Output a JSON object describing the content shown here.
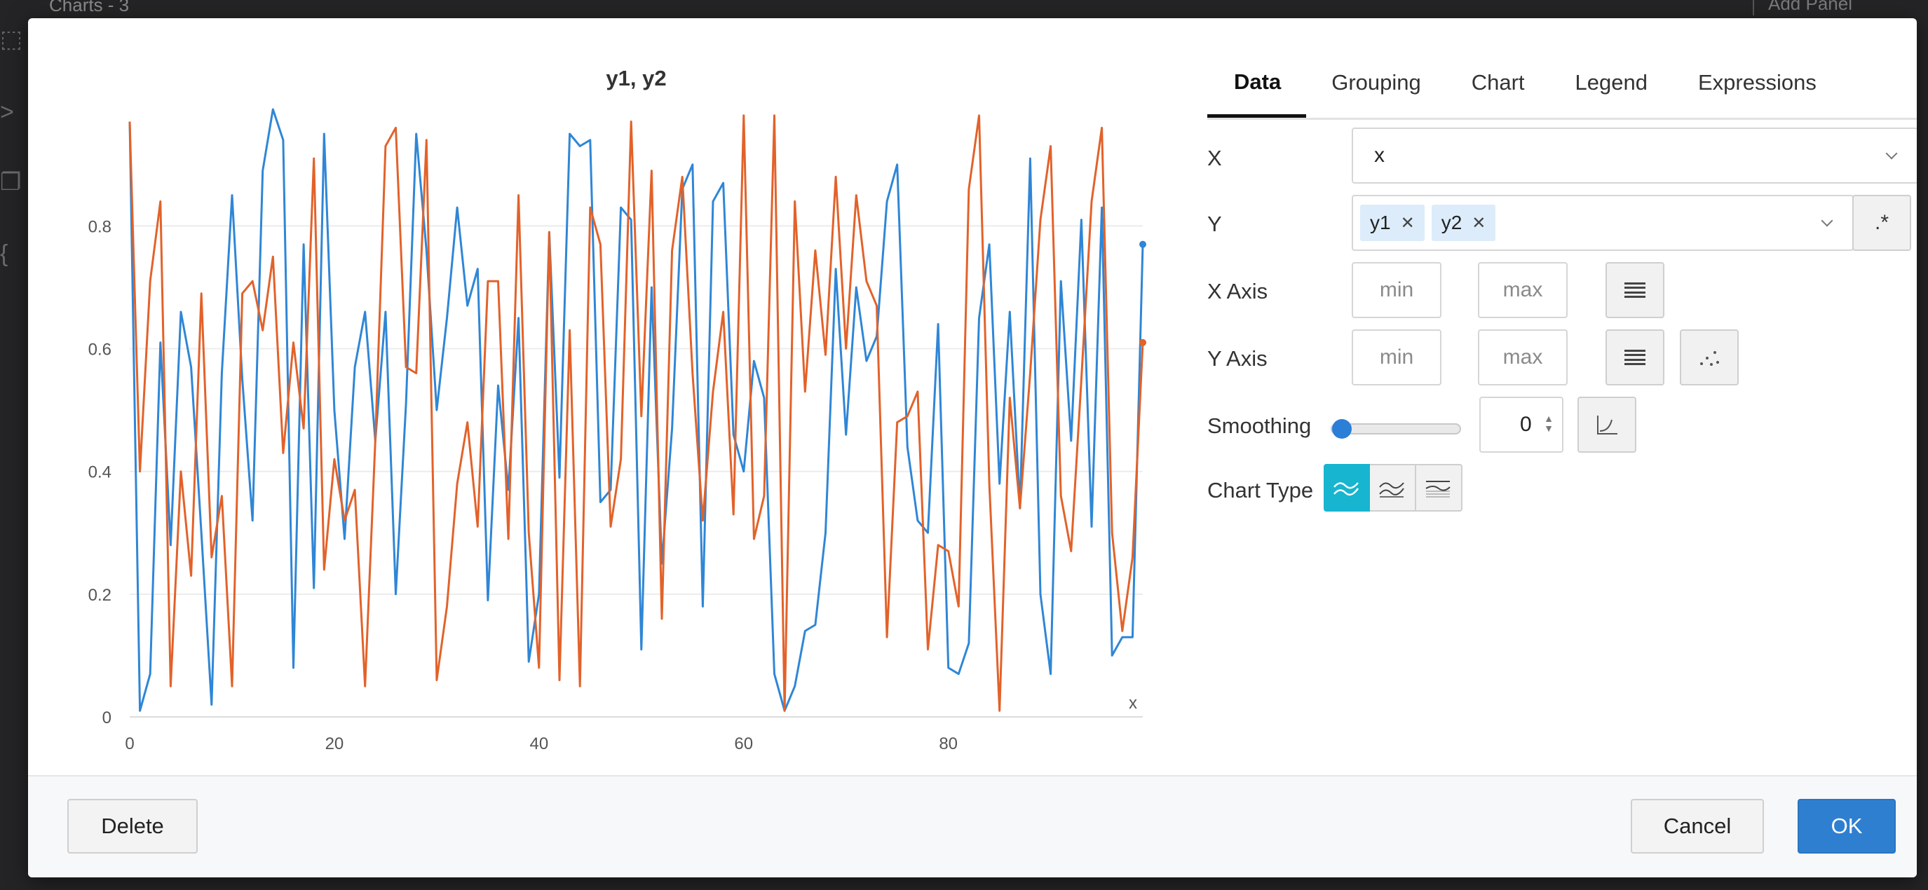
{
  "background": {
    "tab_label": "Charts - 3",
    "right_label": "Add Panel"
  },
  "colors": {
    "series_y1": "#2f86d6",
    "series_y2": "#e2622a",
    "primary": "#2f7fd1",
    "active_toggle": "#17b5cf"
  },
  "tabs": [
    {
      "label": "Data",
      "active": true
    },
    {
      "label": "Grouping",
      "active": false
    },
    {
      "label": "Chart",
      "active": false
    },
    {
      "label": "Legend",
      "active": false
    },
    {
      "label": "Expressions",
      "active": false
    }
  ],
  "form": {
    "x_label": "X",
    "x_value": "x",
    "y_label": "Y",
    "y_tags": [
      "y1",
      "y2"
    ],
    "regex_label": ".*",
    "x_axis_label": "X Axis",
    "y_axis_label": "Y Axis",
    "min_placeholder": "min",
    "max_placeholder": "max",
    "smoothing_label": "Smoothing",
    "smoothing_value": "0",
    "smoothing_level": 0,
    "chart_type_label": "Chart Type"
  },
  "footer": {
    "delete_label": "Delete",
    "cancel_label": "Cancel",
    "ok_label": "OK"
  },
  "chart_data": {
    "type": "line",
    "title": "y1, y2",
    "xlabel": "x",
    "ylabel": "",
    "xlim": [
      0,
      99
    ],
    "ylim": [
      0,
      0.99
    ],
    "x_ticks": [
      0,
      20,
      40,
      60,
      80
    ],
    "y_ticks": [
      0,
      0.2,
      0.4,
      0.6,
      0.8
    ],
    "y_tick_labels": [
      "0",
      "0.2",
      "0.4",
      "0.6",
      "0.8"
    ],
    "grid": true,
    "series": [
      {
        "name": "y1",
        "values": [
          0.97,
          0.01,
          0.07,
          0.61,
          0.28,
          0.66,
          0.57,
          0.3,
          0.02,
          0.56,
          0.85,
          0.55,
          0.32,
          0.89,
          0.99,
          0.94,
          0.08,
          0.77,
          0.21,
          0.95,
          0.5,
          0.29,
          0.57,
          0.66,
          0.45,
          0.66,
          0.2,
          0.51,
          0.95,
          0.76,
          0.5,
          0.65,
          0.83,
          0.67,
          0.73,
          0.19,
          0.54,
          0.37,
          0.65,
          0.09,
          0.2,
          0.79,
          0.39,
          0.95,
          0.93,
          0.94,
          0.35,
          0.37,
          0.83,
          0.81,
          0.11,
          0.7,
          0.25,
          0.47,
          0.86,
          0.9,
          0.18,
          0.84,
          0.87,
          0.46,
          0.4,
          0.58,
          0.52,
          0.07,
          0.01,
          0.05,
          0.14,
          0.15,
          0.3,
          0.73,
          0.46,
          0.7,
          0.58,
          0.62,
          0.84,
          0.9,
          0.44,
          0.32,
          0.3,
          0.64,
          0.08,
          0.07,
          0.12,
          0.65,
          0.77,
          0.38,
          0.66,
          0.34,
          0.91,
          0.2,
          0.07,
          0.71,
          0.45,
          0.81,
          0.31,
          0.83,
          0.1,
          0.13,
          0.13,
          0.77
        ]
      },
      {
        "name": "y2",
        "values": [
          0.97,
          0.4,
          0.71,
          0.84,
          0.05,
          0.4,
          0.23,
          0.69,
          0.26,
          0.36,
          0.05,
          0.69,
          0.71,
          0.63,
          0.75,
          0.43,
          0.61,
          0.47,
          0.91,
          0.24,
          0.42,
          0.32,
          0.37,
          0.05,
          0.45,
          0.93,
          0.96,
          0.57,
          0.56,
          0.94,
          0.06,
          0.18,
          0.38,
          0.48,
          0.31,
          0.71,
          0.71,
          0.29,
          0.85,
          0.3,
          0.08,
          0.79,
          0.06,
          0.63,
          0.05,
          0.83,
          0.77,
          0.31,
          0.42,
          0.97,
          0.49,
          0.89,
          0.16,
          0.76,
          0.88,
          0.56,
          0.32,
          0.53,
          0.66,
          0.33,
          0.98,
          0.29,
          0.36,
          0.98,
          0.01,
          0.84,
          0.53,
          0.76,
          0.59,
          0.88,
          0.6,
          0.85,
          0.71,
          0.67,
          0.13,
          0.48,
          0.49,
          0.53,
          0.11,
          0.28,
          0.27,
          0.18,
          0.86,
          0.98,
          0.38,
          0.01,
          0.52,
          0.34,
          0.56,
          0.81,
          0.93,
          0.36,
          0.27,
          0.55,
          0.84,
          0.96,
          0.3,
          0.14,
          0.26,
          0.61
        ]
      }
    ]
  }
}
